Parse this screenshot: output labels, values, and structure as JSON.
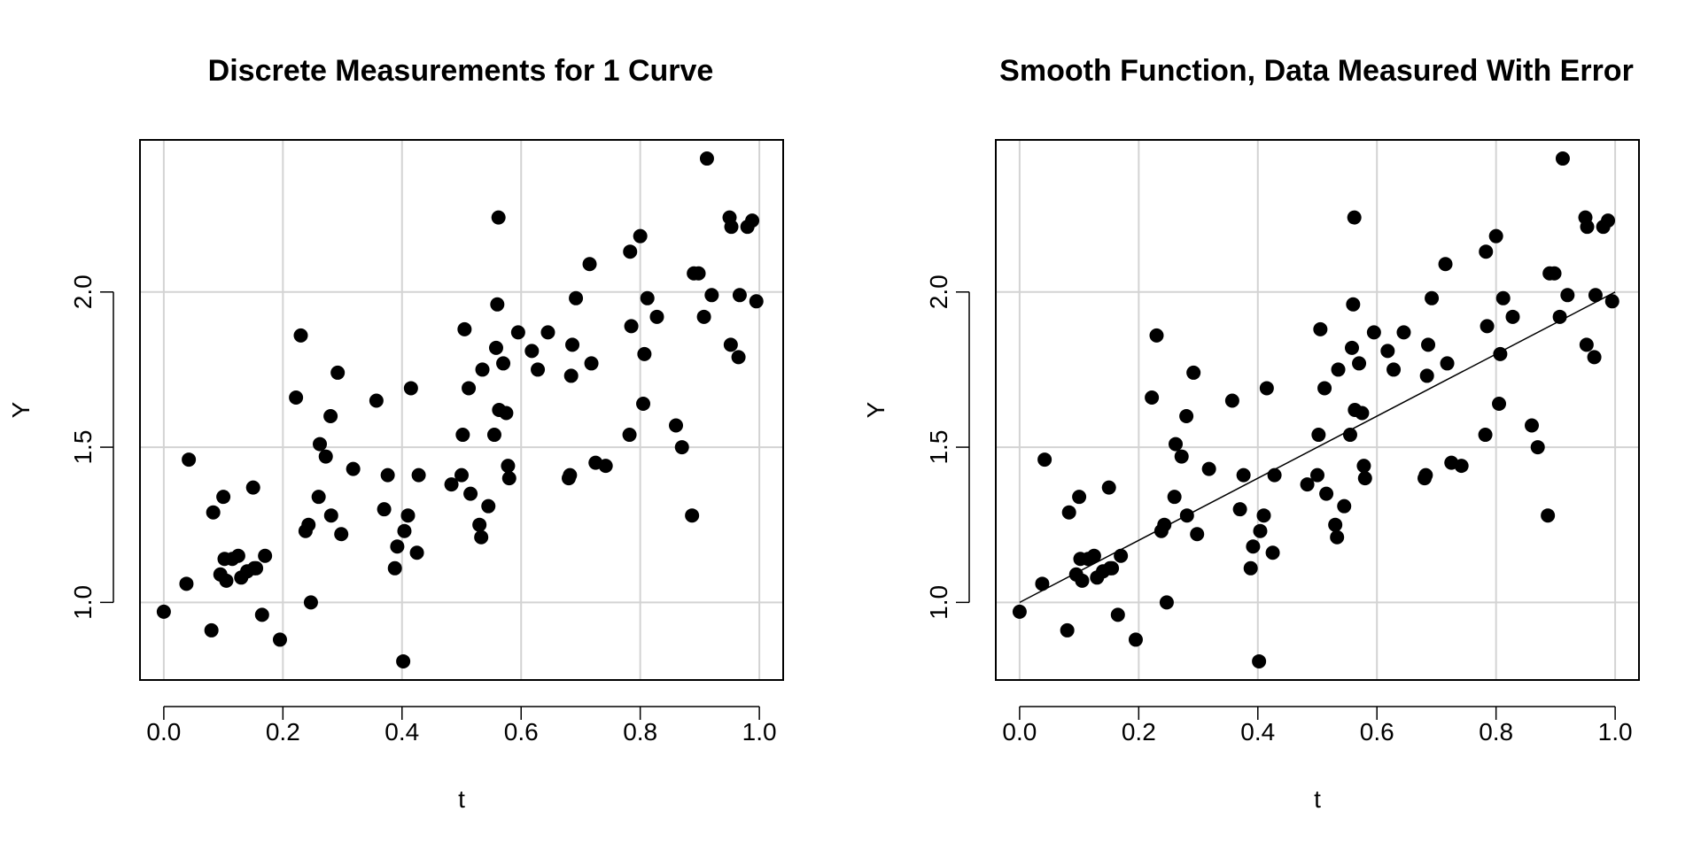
{
  "chart_data": [
    {
      "type": "scatter",
      "title": "Discrete Measurements for 1 Curve",
      "xlabel": "t",
      "ylabel": "Y",
      "xlim": [
        -0.04,
        1.04
      ],
      "ylim": [
        0.75,
        2.49
      ],
      "xticks": [
        "0.0",
        "0.2",
        "0.4",
        "0.6",
        "0.8",
        "1.0"
      ],
      "yticks": [
        "1.0",
        "1.5",
        "2.0"
      ],
      "grid": true,
      "x": [
        0.0,
        0.038,
        0.042,
        0.08,
        0.083,
        0.095,
        0.1,
        0.102,
        0.105,
        0.115,
        0.125,
        0.13,
        0.14,
        0.15,
        0.152,
        0.155,
        0.165,
        0.17,
        0.195,
        0.222,
        0.23,
        0.238,
        0.243,
        0.247,
        0.26,
        0.262,
        0.272,
        0.28,
        0.281,
        0.292,
        0.298,
        0.318,
        0.357,
        0.37,
        0.376,
        0.388,
        0.392,
        0.402,
        0.404,
        0.41,
        0.415,
        0.425,
        0.428,
        0.483,
        0.5,
        0.502,
        0.505,
        0.512,
        0.515,
        0.53,
        0.533,
        0.535,
        0.545,
        0.555,
        0.558,
        0.56,
        0.562,
        0.563,
        0.57,
        0.575,
        0.578,
        0.58,
        0.595,
        0.618,
        0.628,
        0.645,
        0.68,
        0.682,
        0.684,
        0.686,
        0.692,
        0.715,
        0.718,
        0.725,
        0.742,
        0.782,
        0.783,
        0.785,
        0.8,
        0.805,
        0.807,
        0.812,
        0.828,
        0.86,
        0.87,
        0.887,
        0.89,
        0.898,
        0.907,
        0.912,
        0.92,
        0.95,
        0.952,
        0.953,
        0.965,
        0.967,
        0.98,
        0.988,
        0.995
      ],
      "y": [
        0.97,
        1.06,
        1.46,
        0.91,
        1.29,
        1.09,
        1.34,
        1.14,
        1.07,
        1.14,
        1.15,
        1.08,
        1.1,
        1.37,
        1.11,
        1.11,
        0.96,
        1.15,
        0.88,
        1.66,
        1.86,
        1.23,
        1.25,
        1.0,
        1.34,
        1.51,
        1.47,
        1.6,
        1.28,
        1.74,
        1.22,
        1.43,
        1.65,
        1.3,
        1.41,
        1.11,
        1.18,
        0.81,
        1.23,
        1.28,
        1.69,
        1.16,
        1.41,
        1.38,
        1.41,
        1.54,
        1.88,
        1.69,
        1.35,
        1.25,
        1.21,
        1.75,
        1.31,
        1.54,
        1.82,
        1.96,
        2.24,
        1.62,
        1.77,
        1.61,
        1.44,
        1.4,
        1.87,
        1.81,
        1.75,
        1.87,
        1.4,
        1.41,
        1.73,
        1.83,
        1.98,
        2.09,
        1.77,
        1.45,
        1.44,
        1.54,
        2.13,
        1.89,
        2.18,
        1.64,
        1.8,
        1.98,
        1.92,
        1.57,
        1.5,
        1.28,
        2.06,
        2.06,
        1.92,
        2.43,
        1.99,
        2.24,
        1.83,
        2.21,
        1.79,
        1.99,
        2.21,
        2.23,
        1.97
      ]
    },
    {
      "type": "scatter",
      "title": "Smooth Function, Data Measured With Error",
      "xlabel": "t",
      "ylabel": "Y",
      "xlim": [
        -0.04,
        1.04
      ],
      "ylim": [
        0.75,
        2.49
      ],
      "xticks": [
        "0.0",
        "0.2",
        "0.4",
        "0.6",
        "0.8",
        "1.0"
      ],
      "yticks": [
        "1.0",
        "1.5",
        "2.0"
      ],
      "grid": true,
      "x": [
        0.0,
        0.038,
        0.042,
        0.08,
        0.083,
        0.095,
        0.1,
        0.102,
        0.105,
        0.115,
        0.125,
        0.13,
        0.14,
        0.15,
        0.152,
        0.155,
        0.165,
        0.17,
        0.195,
        0.222,
        0.23,
        0.238,
        0.243,
        0.247,
        0.26,
        0.262,
        0.272,
        0.28,
        0.281,
        0.292,
        0.298,
        0.318,
        0.357,
        0.37,
        0.376,
        0.388,
        0.392,
        0.402,
        0.404,
        0.41,
        0.415,
        0.425,
        0.428,
        0.483,
        0.5,
        0.502,
        0.505,
        0.512,
        0.515,
        0.53,
        0.533,
        0.535,
        0.545,
        0.555,
        0.558,
        0.56,
        0.562,
        0.563,
        0.57,
        0.575,
        0.578,
        0.58,
        0.595,
        0.618,
        0.628,
        0.645,
        0.68,
        0.682,
        0.684,
        0.686,
        0.692,
        0.715,
        0.718,
        0.725,
        0.742,
        0.782,
        0.783,
        0.785,
        0.8,
        0.805,
        0.807,
        0.812,
        0.828,
        0.86,
        0.87,
        0.887,
        0.89,
        0.898,
        0.907,
        0.912,
        0.92,
        0.95,
        0.952,
        0.953,
        0.965,
        0.967,
        0.98,
        0.988,
        0.995
      ],
      "y": [
        0.97,
        1.06,
        1.46,
        0.91,
        1.29,
        1.09,
        1.34,
        1.14,
        1.07,
        1.14,
        1.15,
        1.08,
        1.1,
        1.37,
        1.11,
        1.11,
        0.96,
        1.15,
        0.88,
        1.66,
        1.86,
        1.23,
        1.25,
        1.0,
        1.34,
        1.51,
        1.47,
        1.6,
        1.28,
        1.74,
        1.22,
        1.43,
        1.65,
        1.3,
        1.41,
        1.11,
        1.18,
        0.81,
        1.23,
        1.28,
        1.69,
        1.16,
        1.41,
        1.38,
        1.41,
        1.54,
        1.88,
        1.69,
        1.35,
        1.25,
        1.21,
        1.75,
        1.31,
        1.54,
        1.82,
        1.96,
        2.24,
        1.62,
        1.77,
        1.61,
        1.44,
        1.4,
        1.87,
        1.81,
        1.75,
        1.87,
        1.4,
        1.41,
        1.73,
        1.83,
        1.98,
        2.09,
        1.77,
        1.45,
        1.44,
        1.54,
        2.13,
        1.89,
        2.18,
        1.64,
        1.8,
        1.98,
        1.92,
        1.57,
        1.5,
        1.28,
        2.06,
        2.06,
        1.92,
        2.43,
        1.99,
        2.24,
        1.83,
        2.21,
        1.79,
        1.99,
        2.21,
        2.23,
        1.97
      ],
      "line": {
        "x": [
          0.0,
          1.0
        ],
        "y": [
          1.0,
          2.0
        ]
      }
    }
  ]
}
